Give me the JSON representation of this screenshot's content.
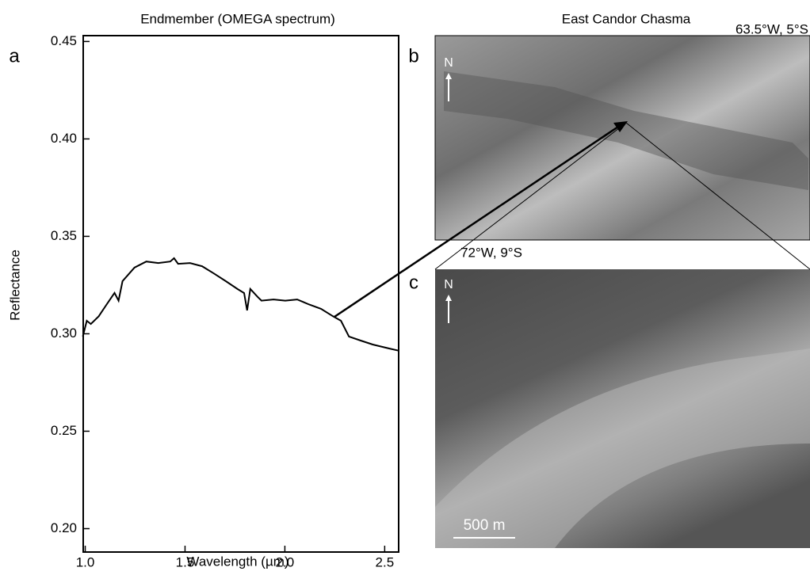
{
  "chart_data": {
    "type": "line",
    "title": "Endmember (OMEGA spectrum)",
    "x_label": "Wavelength (µm)",
    "y_label": "Reflectance",
    "panel_label": "a",
    "color": "#000000",
    "x": [
      0.988,
      1.008,
      1.028,
      1.068,
      1.107,
      1.147,
      1.167,
      1.187,
      1.247,
      1.306,
      1.366,
      1.426,
      1.445,
      1.465,
      1.525,
      1.585,
      1.644,
      1.704,
      1.764,
      1.796,
      1.811,
      1.827,
      1.863,
      1.883,
      1.943,
      2.002,
      2.062,
      2.122,
      2.181,
      2.241,
      2.281,
      2.321,
      2.38,
      2.44,
      2.52,
      2.571
    ],
    "values": [
      0.2986,
      0.3067,
      0.305,
      0.309,
      0.315,
      0.321,
      0.317,
      0.327,
      0.334,
      0.3371,
      0.3363,
      0.3371,
      0.3388,
      0.3359,
      0.3363,
      0.3347,
      0.331,
      0.327,
      0.3229,
      0.3209,
      0.312,
      0.323,
      0.319,
      0.317,
      0.3176,
      0.317,
      0.3176,
      0.315,
      0.3128,
      0.309,
      0.3067,
      0.2986,
      0.2965,
      0.2945,
      0.2925,
      0.2913
    ],
    "xlim": [
      0.99,
      2.57
    ],
    "ylim": [
      0.188,
      0.453
    ],
    "xticks": [
      {
        "value": 1.0,
        "label": "1.0"
      },
      {
        "value": 1.5,
        "label": "1.5"
      },
      {
        "value": 2.0,
        "label": "2.0"
      },
      {
        "value": 2.5,
        "label": "2.5"
      }
    ],
    "yticks": [
      {
        "value": 0.2,
        "label": "0.20"
      },
      {
        "value": 0.25,
        "label": "0.25"
      },
      {
        "value": 0.3,
        "label": "0.30"
      },
      {
        "value": 0.35,
        "label": "0.35"
      },
      {
        "value": 0.4,
        "label": "0.40"
      },
      {
        "value": 0.45,
        "label": "0.45"
      }
    ]
  },
  "images": {
    "title": "East Candor Chasma",
    "b": {
      "panel_label": "b",
      "top_right": "63.5°W, 5°S",
      "bottom_left": "72°W, 9°S",
      "north": "N"
    },
    "c": {
      "panel_label": "c",
      "north": "N",
      "scale_bar": "500 m"
    }
  }
}
